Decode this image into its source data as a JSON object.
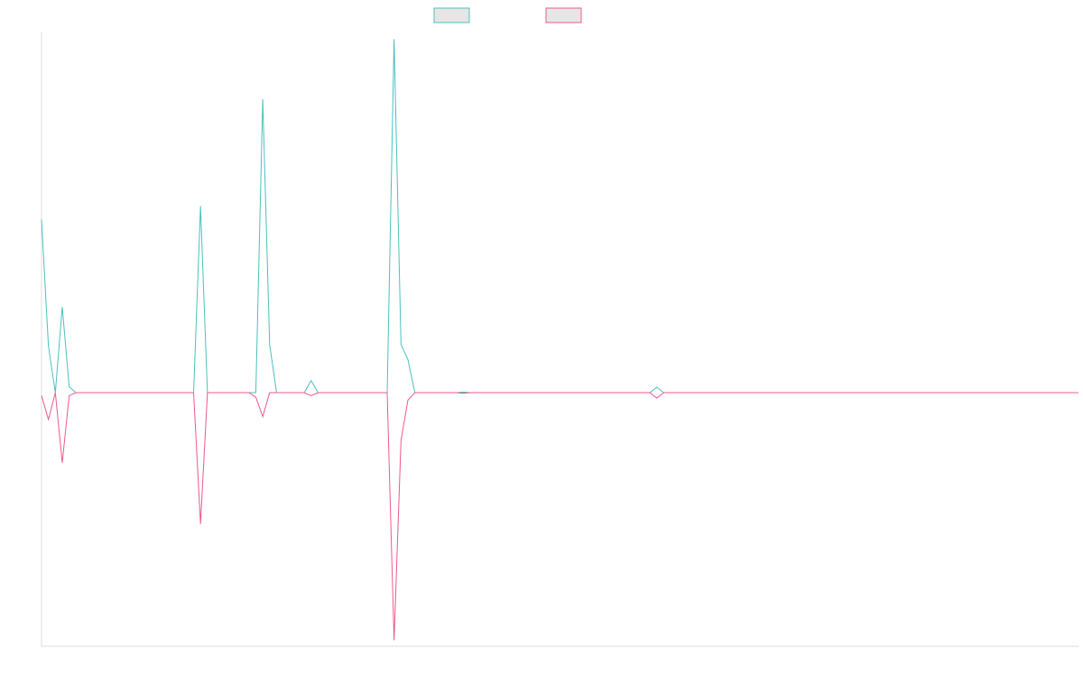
{
  "chart_data": {
    "type": "line",
    "title": "",
    "xlabel": "",
    "ylabel": "",
    "grid": false,
    "legend_position": "top-center",
    "x": [
      0,
      1,
      2,
      3,
      4,
      5,
      6,
      7,
      8,
      9,
      10,
      11,
      12,
      13,
      14,
      15,
      16,
      17,
      18,
      19,
      20,
      21,
      22,
      23,
      24,
      25,
      26,
      27,
      28,
      29,
      30,
      31,
      32,
      33,
      34,
      35,
      36,
      37,
      38,
      39,
      40,
      41,
      42,
      43,
      44,
      45,
      46,
      47,
      48,
      49,
      50,
      51,
      52,
      53,
      54,
      55,
      56,
      57,
      58,
      59,
      60,
      61,
      62,
      63,
      64,
      65,
      66,
      67,
      68,
      69,
      70,
      71,
      72,
      73,
      74,
      75,
      76,
      77,
      78,
      79,
      80,
      81,
      82,
      83,
      84,
      85,
      86,
      87,
      88,
      89,
      90,
      91,
      92,
      93,
      94,
      95,
      96,
      97,
      98,
      99,
      100,
      101,
      102,
      103,
      104,
      105,
      106,
      107,
      108,
      109,
      110,
      111,
      112,
      113,
      114,
      115,
      116,
      117,
      118,
      119,
      120,
      121,
      122,
      123,
      124,
      125,
      126,
      127,
      128,
      129,
      130,
      131,
      132,
      133,
      134,
      135,
      136,
      137,
      138,
      139,
      140,
      141,
      142,
      143,
      144,
      145,
      146,
      147,
      148,
      149,
      150
    ],
    "ylim": [
      -1.0,
      1.0
    ],
    "series": [
      {
        "color": "#4bc0c0",
        "fill": "#e6e6e6",
        "values": [
          0.575,
          0.155,
          0,
          0.285,
          0.02,
          0,
          0,
          0,
          0,
          0,
          0,
          0,
          0,
          0,
          0,
          0,
          0,
          0,
          0,
          0,
          0,
          0,
          0,
          0.62,
          0,
          0,
          0,
          0,
          0,
          0,
          0,
          0,
          0.975,
          0.16,
          0,
          0,
          0,
          0,
          0,
          0.04,
          0,
          0,
          0,
          0,
          0,
          0,
          0,
          0,
          0,
          0,
          0,
          1.175,
          0.16,
          0.11,
          0,
          0,
          0,
          0,
          0,
          0,
          0,
          0.002,
          0,
          0,
          0,
          0,
          0,
          0,
          0,
          0,
          0,
          0,
          0,
          0,
          0,
          0,
          0,
          0,
          0,
          0,
          0,
          0,
          0,
          0,
          0,
          0,
          0,
          0,
          0,
          0.018,
          0,
          0,
          0,
          0,
          0,
          0,
          0,
          0,
          0,
          0,
          0,
          0,
          0,
          0,
          0,
          0,
          0,
          0,
          0,
          0,
          0,
          0,
          0,
          0,
          0,
          0,
          0,
          0,
          0,
          0,
          0,
          0,
          0,
          0,
          0,
          0,
          0,
          0,
          0,
          0,
          0,
          0,
          0,
          0,
          0,
          0,
          0,
          0,
          0,
          0,
          0,
          0,
          0,
          0,
          0,
          0,
          0,
          0,
          0,
          0,
          0
        ]
      },
      {
        "color": "#f0588a",
        "fill": "#e6e6e6",
        "values": [
          -0.01,
          -0.09,
          0,
          -0.235,
          -0.01,
          0,
          0,
          0,
          0,
          0,
          0,
          0,
          0,
          0,
          0,
          0,
          0,
          0,
          0,
          0,
          0,
          0,
          0,
          -0.44,
          0,
          0,
          0,
          0,
          0,
          0,
          0,
          -0.015,
          -0.08,
          0,
          0,
          0,
          0,
          0,
          0,
          -0.01,
          0,
          0,
          0,
          0,
          0,
          0,
          0,
          0,
          0,
          0,
          0,
          -0.83,
          -0.16,
          -0.025,
          0,
          0,
          0,
          0,
          0,
          0,
          0,
          -0.002,
          0,
          0,
          0,
          0,
          0,
          0,
          0,
          0,
          0,
          0,
          0,
          0,
          0,
          0,
          0,
          0,
          0,
          0,
          0,
          0,
          0,
          0,
          0,
          0,
          0,
          0,
          0,
          -0.018,
          0,
          0,
          0,
          0,
          0,
          0,
          0,
          0,
          0,
          0,
          0,
          0,
          0,
          0,
          0,
          0,
          0,
          0,
          0,
          0,
          0,
          0,
          0,
          0,
          0,
          0,
          0,
          0,
          0,
          0,
          0,
          0,
          0,
          0,
          0,
          0,
          0,
          0,
          0,
          0,
          0,
          0,
          0,
          0,
          0,
          0,
          0,
          0,
          0,
          0,
          0,
          0,
          0,
          0,
          0,
          0,
          0,
          0,
          0,
          0,
          0
        ]
      }
    ]
  }
}
